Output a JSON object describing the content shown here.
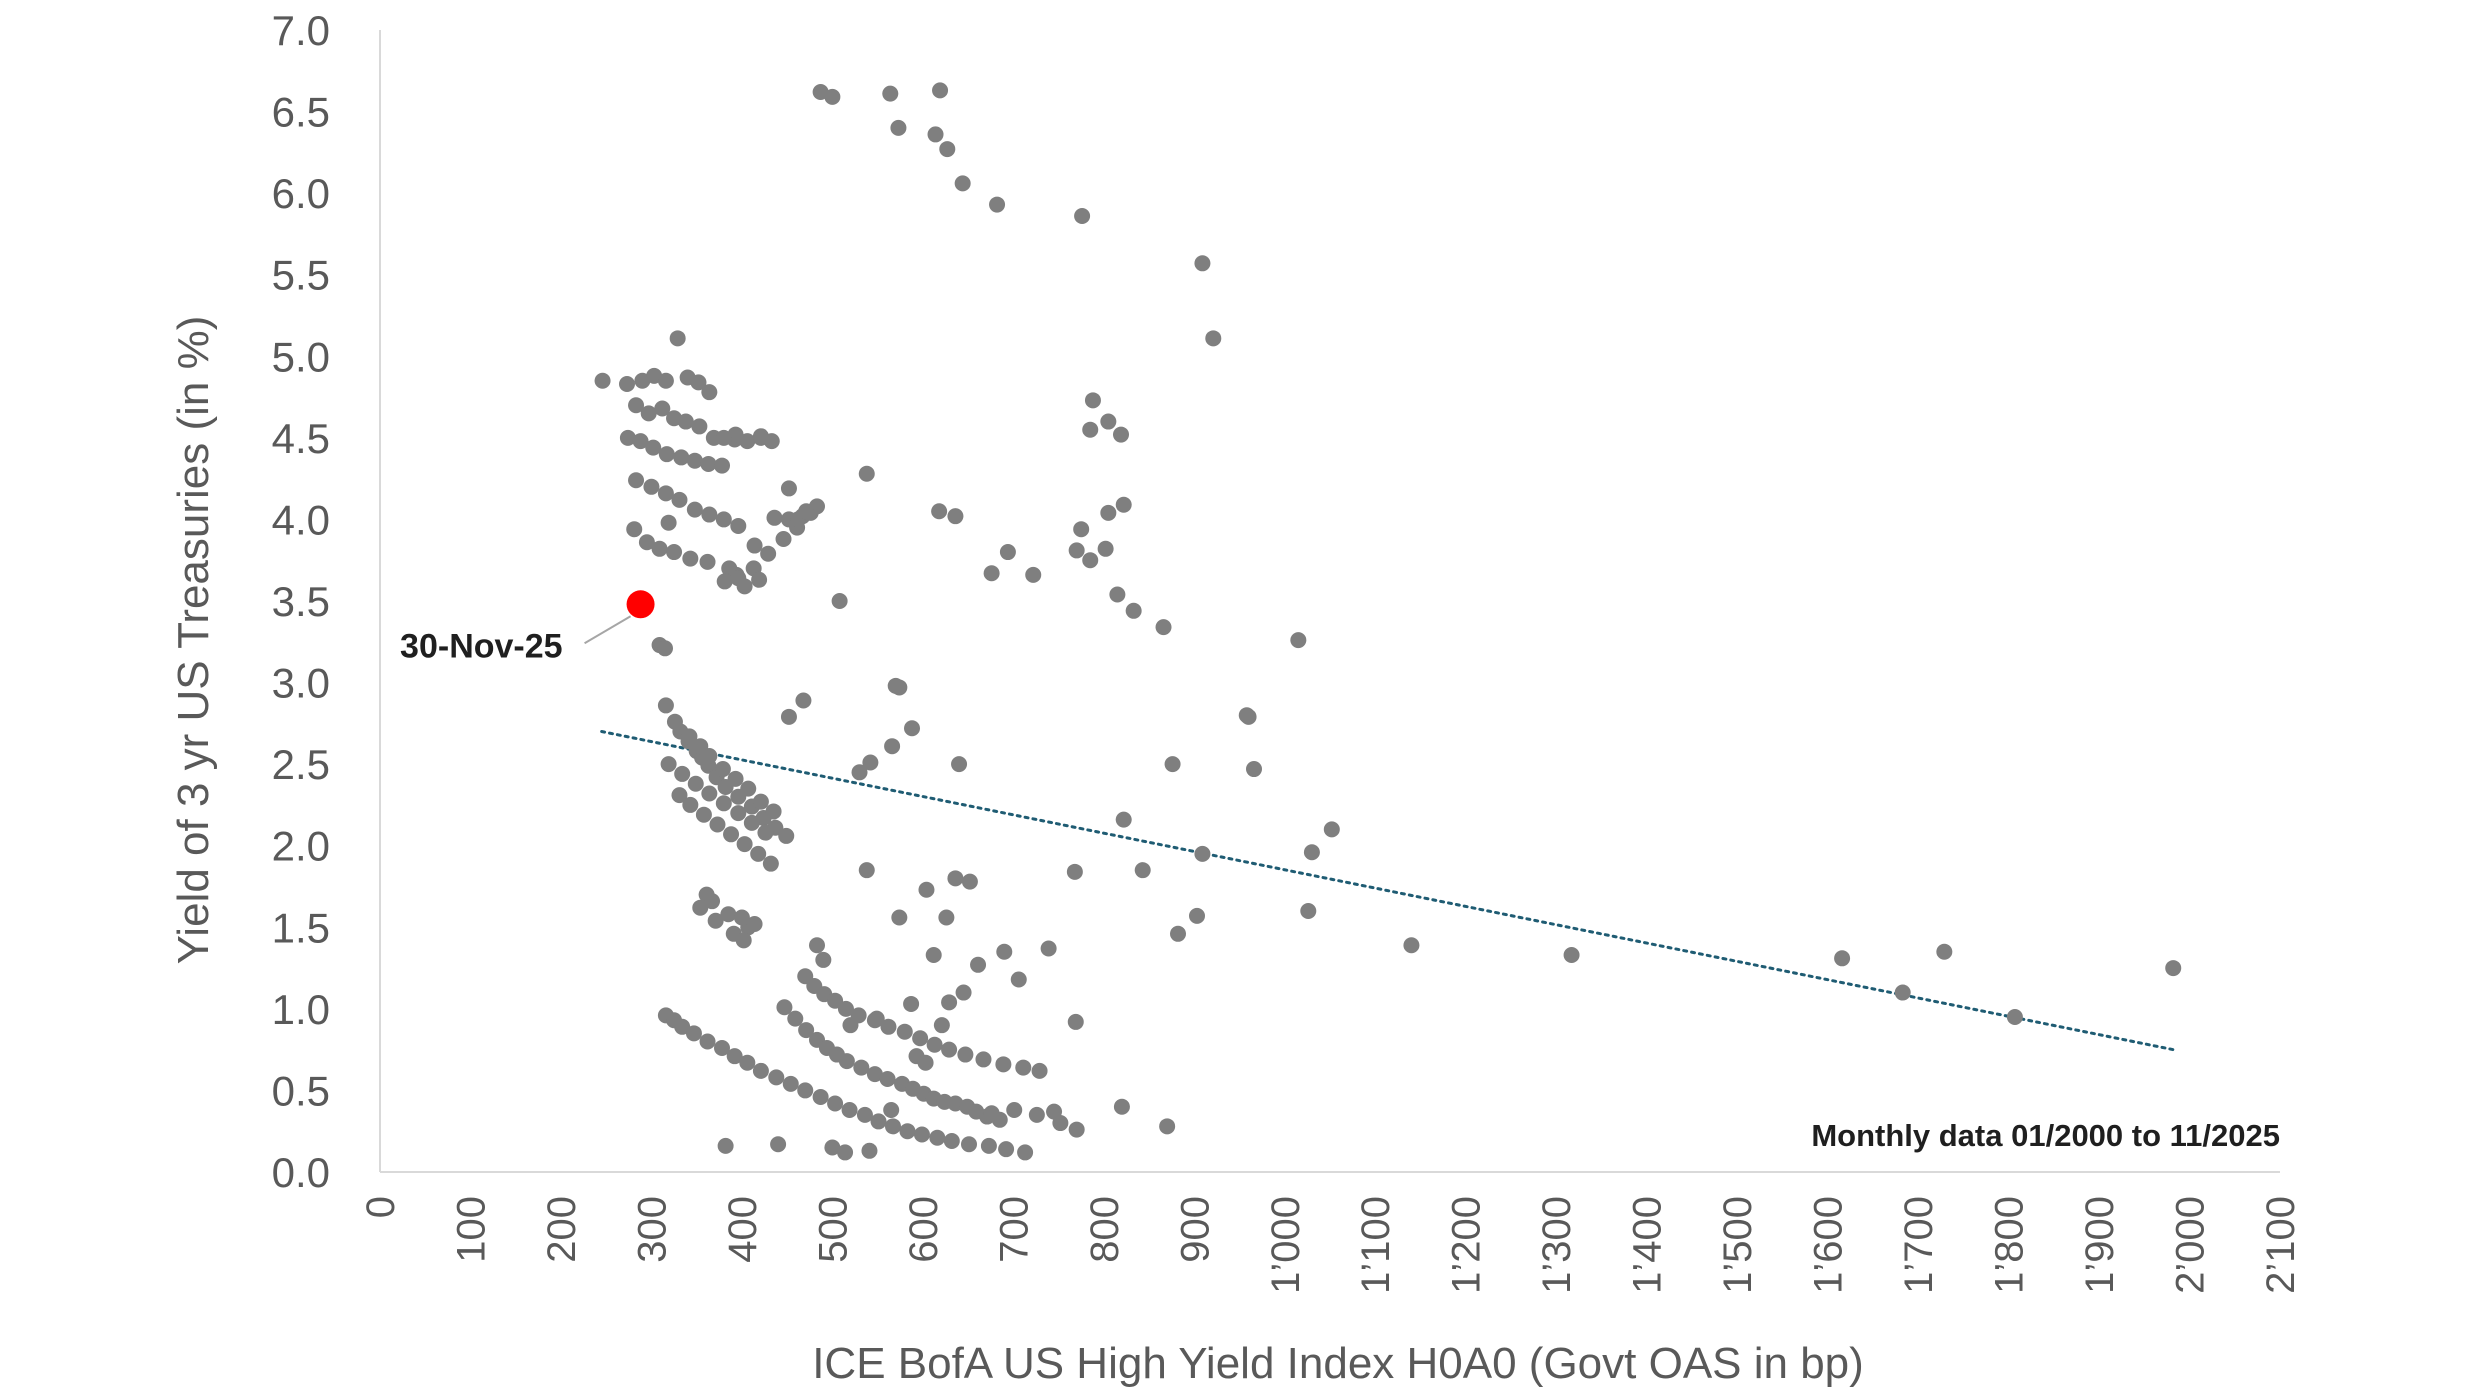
{
  "chart_data": {
    "type": "scatter",
    "xlabel": "ICE BofA US High Yield Index H0A0 (Govt OAS in bp)",
    "ylabel": "Yield of 3 yr US Treasuries (in %)",
    "xlim": [
      0,
      2100
    ],
    "ylim": [
      0,
      7
    ],
    "x_ticks": [
      "0",
      "100",
      "200",
      "300",
      "400",
      "500",
      "600",
      "700",
      "800",
      "900",
      "1’000",
      "1’100",
      "1’200",
      "1’300",
      "1’400",
      "1’500",
      "1’600",
      "1’700",
      "1’800",
      "1’900",
      "2’000",
      "2’100"
    ],
    "y_ticks": [
      "0.0",
      "0.5",
      "1.0",
      "1.5",
      "2.0",
      "2.5",
      "3.0",
      "3.5",
      "4.0",
      "4.5",
      "5.0",
      "5.5",
      "6.0",
      "6.5",
      "7.0"
    ],
    "grid": false,
    "colors": {
      "points": "#7f7f7f",
      "highlight": "#ff0000",
      "trend": "#1f5c73",
      "axis": "#d9d9d9",
      "text": "#595959"
    },
    "series": [
      {
        "x": [
          487,
          500,
          573,
          614,
          564,
          619,
          627,
          644,
          682,
          776,
          909,
          921,
          246,
          273,
          290,
          303,
          316,
          329,
          340,
          352,
          364,
          283,
          297,
          312,
          325,
          338,
          353,
          369,
          274,
          288,
          302,
          317,
          333,
          348,
          363,
          378,
          392,
          406,
          421,
          283,
          300,
          316,
          331,
          348,
          364,
          380,
          396,
          281,
          295,
          309,
          325,
          343,
          362,
          386,
          394,
          309,
          315,
          319,
          381,
          396,
          413,
          429,
          446,
          461,
          476,
          403,
          419,
          436,
          452,
          467,
          483,
          452,
          462,
          471,
          421,
          433,
          414,
          393,
          380,
          508,
          538,
          618,
          636,
          694,
          676,
          722,
          770,
          785,
          802,
          775,
          815,
          805,
          822,
          785,
          788,
          805,
          819,
          833,
          866,
          1015,
          960,
          966,
          958,
          1052,
          1030,
          1026,
          1140,
          1317,
          1616,
          1683,
          1729,
          1807,
          1982,
          316,
          326,
          332,
          341,
          350,
          356,
          363,
          372,
          382,
          396,
          411,
          424,
          437,
          449,
          342,
          354,
          364,
          379,
          393,
          407,
          421,
          435,
          331,
          343,
          358,
          373,
          388,
          403,
          418,
          432,
          319,
          334,
          349,
          364,
          380,
          396,
          411,
          426,
          361,
          367,
          354,
          385,
          371,
          407,
          391,
          402,
          414,
          400,
          452,
          468,
          530,
          542,
          570,
          574,
          588,
          538,
          566,
          574,
          604,
          636,
          626,
          640,
          652,
          690,
          768,
          876,
          882,
          843,
          903,
          909,
          822,
          447,
          459,
          471,
          483,
          494,
          505,
          516,
          532,
          547,
          561,
          577,
          589,
          601,
          612,
          624,
          636,
          649,
          659,
          671,
          685,
          701,
          726,
          752,
          770,
          470,
          480,
          491,
          503,
          515,
          529,
          547,
          562,
          580,
          597,
          613,
          629,
          647,
          667,
          689,
          711,
          729,
          769,
          316,
          325,
          334,
          347,
          362,
          378,
          392,
          406,
          421,
          438,
          454,
          470,
          487,
          503,
          519,
          536,
          551,
          567,
          583,
          599,
          616,
          632,
          651,
          673,
          692,
          713,
          745,
          820,
          870,
          382,
          440,
          483,
          490,
          500,
          514,
          520,
          541,
          565,
          549,
          593,
          603,
          587,
          612,
          621,
          629,
          645,
          661,
          676,
          706,
          739
        ],
        "y": [
          6.62,
          6.59,
          6.4,
          6.36,
          6.61,
          6.63,
          6.27,
          6.06,
          5.93,
          5.86,
          5.57,
          5.11,
          4.85,
          4.83,
          4.85,
          4.88,
          4.85,
          5.11,
          4.87,
          4.84,
          4.78,
          4.7,
          4.65,
          4.68,
          4.62,
          4.6,
          4.57,
          4.5,
          4.5,
          4.48,
          4.44,
          4.4,
          4.38,
          4.36,
          4.34,
          4.33,
          4.49,
          4.48,
          4.5,
          4.24,
          4.2,
          4.16,
          4.12,
          4.06,
          4.03,
          4.0,
          3.96,
          3.94,
          3.86,
          3.82,
          3.8,
          3.76,
          3.74,
          3.7,
          3.66,
          3.23,
          3.21,
          3.98,
          3.62,
          3.64,
          3.7,
          3.79,
          3.88,
          3.95,
          4.04,
          3.59,
          3.63,
          4.01,
          4.0,
          4.02,
          4.08,
          4.19,
          4.0,
          4.05,
          4.51,
          4.48,
          3.84,
          4.52,
          4.5,
          3.5,
          4.28,
          4.05,
          4.02,
          3.8,
          3.67,
          3.66,
          3.81,
          3.75,
          3.82,
          3.94,
          3.54,
          4.04,
          4.09,
          4.55,
          4.73,
          4.6,
          4.52,
          3.44,
          3.34,
          3.26,
          2.79,
          2.47,
          2.8,
          2.1,
          1.96,
          1.6,
          1.39,
          1.33,
          1.31,
          1.1,
          1.35,
          0.95,
          1.25,
          2.86,
          2.76,
          2.7,
          2.64,
          2.58,
          2.54,
          2.49,
          2.42,
          2.36,
          2.3,
          2.24,
          2.17,
          2.11,
          2.06,
          2.67,
          2.61,
          2.55,
          2.47,
          2.41,
          2.35,
          2.27,
          2.21,
          2.31,
          2.25,
          2.19,
          2.13,
          2.07,
          2.01,
          1.95,
          1.89,
          2.5,
          2.44,
          2.38,
          2.32,
          2.26,
          2.2,
          2.14,
          2.08,
          1.7,
          1.66,
          1.62,
          1.58,
          1.54,
          1.5,
          1.46,
          1.42,
          1.52,
          1.56,
          2.79,
          2.89,
          2.45,
          2.51,
          2.98,
          2.97,
          2.72,
          1.85,
          2.61,
          1.56,
          1.73,
          1.8,
          1.56,
          2.5,
          1.78,
          1.35,
          1.84,
          2.5,
          1.46,
          1.85,
          1.57,
          1.95,
          2.16,
          1.01,
          0.94,
          0.87,
          0.81,
          0.76,
          0.72,
          0.68,
          0.64,
          0.6,
          0.57,
          0.54,
          0.51,
          0.48,
          0.45,
          0.43,
          0.42,
          0.4,
          0.37,
          0.34,
          0.32,
          0.38,
          0.35,
          0.3,
          0.26,
          1.2,
          1.14,
          1.09,
          1.05,
          1.0,
          0.96,
          0.93,
          0.89,
          0.86,
          0.82,
          0.78,
          0.75,
          0.72,
          0.69,
          0.66,
          0.64,
          0.62,
          0.92,
          0.96,
          0.93,
          0.89,
          0.85,
          0.8,
          0.76,
          0.71,
          0.67,
          0.62,
          0.58,
          0.54,
          0.5,
          0.46,
          0.42,
          0.38,
          0.35,
          0.31,
          0.28,
          0.25,
          0.23,
          0.21,
          0.19,
          0.17,
          0.16,
          0.14,
          0.12,
          0.37,
          0.4,
          0.28,
          0.16,
          0.17,
          1.39,
          1.3,
          0.15,
          0.12,
          0.9,
          0.13,
          0.38,
          0.94,
          0.71,
          0.67,
          1.03,
          1.33,
          0.9,
          1.04,
          1.1,
          1.27,
          0.36,
          1.18,
          1.37
        ]
      }
    ],
    "highlight": {
      "label": "30-Nov-25",
      "x": 288,
      "y": 3.48
    },
    "trendline": {
      "x": [
        245,
        1982
      ],
      "y": [
        2.7,
        0.75
      ],
      "style": "dotted"
    },
    "note": "Monthly data 01/2000 to 11/2025"
  }
}
